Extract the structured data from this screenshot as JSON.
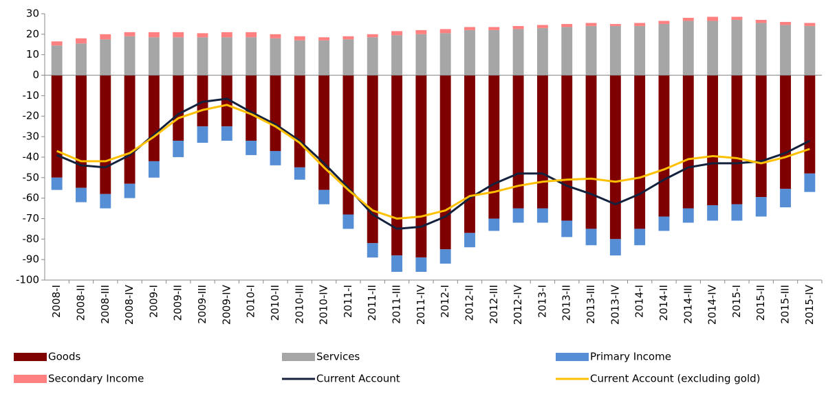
{
  "chart_data": {
    "type": "bar",
    "categories": [
      "2008-I",
      "2008-II",
      "2008-III",
      "2008-IV",
      "2009-I",
      "2009-II",
      "2009-III",
      "2009-IV",
      "2010-I",
      "2010-II",
      "2010-III",
      "2010-IV",
      "2011-I",
      "2011-II",
      "2011-III",
      "2011-IV",
      "2012-I",
      "2012-II",
      "2012-III",
      "2012-IV",
      "2013-I",
      "2013-II",
      "2013-III",
      "2013-IV",
      "2014-I",
      "2014-II",
      "2014-III",
      "2014-IV",
      "2015-I",
      "2015-II",
      "2015-III",
      "2015-IV"
    ],
    "series": [
      {
        "name": "Goods",
        "type": "bar",
        "color": "#7f0000",
        "values": [
          -50,
          -55,
          -58,
          -53,
          -42,
          -32,
          -25,
          -25,
          -32,
          -37,
          -45,
          -56,
          -68,
          -82,
          -88,
          -89,
          -85,
          -77,
          -70,
          -65,
          -65,
          -71,
          -75,
          -80,
          -75,
          -69,
          -65,
          -63.5,
          -63,
          -59.5,
          -55.5,
          -48
        ]
      },
      {
        "name": "Services",
        "type": "bar",
        "color": "#a6a6a6",
        "values": [
          14.5,
          15.5,
          17.5,
          19,
          18.5,
          18.5,
          18.5,
          18.5,
          18.5,
          18,
          17,
          17,
          17.5,
          18.5,
          19.5,
          20,
          20.5,
          22,
          22,
          22.5,
          23,
          23.5,
          24,
          24,
          24,
          25,
          26.5,
          26.5,
          27,
          25.5,
          24.5,
          24
        ]
      },
      {
        "name": "Primary Income",
        "type": "bar",
        "color": "#558ed5",
        "values": [
          -6,
          -7,
          -7,
          -7,
          -8,
          -8,
          -8,
          -7,
          -7,
          -7,
          -6,
          -7,
          -7,
          -7,
          -8,
          -7,
          -7,
          -7,
          -6,
          -7,
          -7,
          -8,
          -8,
          -8,
          -8,
          -7,
          -7,
          -7.5,
          -8,
          -9.5,
          -9,
          -9
        ]
      },
      {
        "name": "Secondary Income",
        "type": "bar",
        "color": "#ff8080",
        "values": [
          2,
          2.5,
          2.5,
          2,
          2.5,
          2.5,
          2,
          2.5,
          2.5,
          2,
          2,
          1.5,
          1.5,
          1.5,
          2,
          2,
          2,
          1.5,
          1.5,
          1.5,
          1.5,
          1.5,
          1.5,
          1,
          1.5,
          1.5,
          1.5,
          2,
          1.5,
          1.5,
          1.5,
          1.5
        ]
      },
      {
        "name": "Current Account",
        "type": "line",
        "color": "#14213d",
        "values": [
          -39,
          -44,
          -45,
          -39,
          -29,
          -19,
          -13,
          -11.5,
          -18,
          -24,
          -32,
          -43,
          -55,
          -68,
          -75,
          -74,
          -69,
          -60,
          -53,
          -48,
          -48,
          -54,
          -58,
          -63,
          -58,
          -51,
          -45,
          -43,
          -43,
          -42,
          -38,
          -32
        ]
      },
      {
        "name": "Current Account (excluding gold)",
        "type": "line",
        "color": "#ffc000",
        "values": [
          -37,
          -42,
          -42,
          -38,
          -30,
          -21,
          -17,
          -14.5,
          -19,
          -25,
          -33,
          -45,
          -56,
          -66,
          -70,
          -69,
          -66,
          -59,
          -57,
          -54,
          -52,
          -51,
          -50.5,
          -52,
          -50,
          -46,
          -41,
          -39.5,
          -40.5,
          -43,
          -40,
          -36
        ]
      }
    ],
    "ylim": [
      -100,
      30
    ],
    "yticks": [
      -100,
      -90,
      -80,
      -70,
      -60,
      -50,
      -40,
      -30,
      -20,
      -10,
      0,
      10,
      20,
      30
    ],
    "grid": false
  }
}
